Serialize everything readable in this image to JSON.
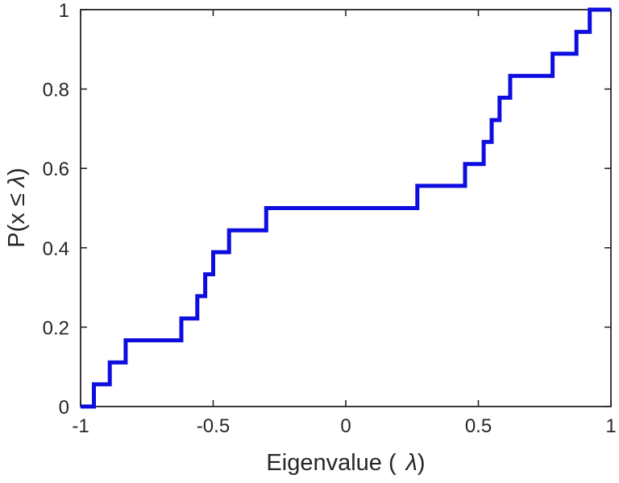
{
  "chart_data": {
    "type": "line",
    "style": "ecdf-step",
    "title": "",
    "xlabel": "Eigenvalue ( λ)",
    "ylabel": "P(x ≤ λ)",
    "xlabel_parts": {
      "prefix": "Eigenvalue (",
      "symbol": "λ",
      "suffix": ")"
    },
    "ylabel_parts": {
      "prefix": "P(x ≤",
      "symbol": "λ",
      "suffix": ")"
    },
    "xlim": [
      -1,
      1
    ],
    "ylim": [
      0,
      1
    ],
    "xticks": [
      "-1",
      "-0.5",
      "0",
      "0.5",
      "1"
    ],
    "yticks": [
      "0",
      "0.2",
      "0.4",
      "0.6",
      "0.8",
      "1"
    ],
    "grid": false,
    "legend": "none",
    "line_color": "#0d0de0",
    "line_width": 5,
    "x": [
      -0.95,
      -0.89,
      -0.83,
      -0.62,
      -0.56,
      -0.53,
      -0.5,
      -0.44,
      -0.3,
      0.27,
      0.45,
      0.52,
      0.55,
      0.58,
      0.62,
      0.78,
      0.87,
      0.92
    ],
    "y": [
      0.056,
      0.111,
      0.167,
      0.222,
      0.278,
      0.333,
      0.389,
      0.444,
      0.5,
      0.556,
      0.611,
      0.667,
      0.722,
      0.778,
      0.833,
      0.889,
      0.944,
      1.0
    ]
  },
  "colors": {
    "axis": "#262626",
    "background": "#ffffff",
    "line": "#0d0de0"
  }
}
